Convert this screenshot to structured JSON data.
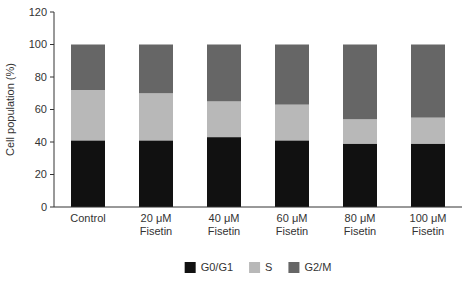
{
  "chart_data": {
    "type": "bar",
    "stacked": true,
    "grid": false,
    "legend": "bottom",
    "y_label": "Cell population (%)",
    "categories": [
      "Control",
      "20 μM\nFisetin",
      "40 μM\nFisetin",
      "60 μM\nFisetin",
      "80 μM\nFisetin",
      "100 μM\nFisetin"
    ],
    "series": [
      {
        "name": "G0/G1",
        "color": "#111111",
        "values": [
          41,
          41,
          43,
          41,
          39,
          39
        ]
      },
      {
        "name": "S",
        "color": "#b8b8b8",
        "values": [
          31,
          29,
          22,
          22,
          15,
          16
        ]
      },
      {
        "name": "G2/M",
        "color": "#666666",
        "values": [
          28,
          30,
          35,
          37,
          46,
          45
        ]
      }
    ],
    "ylim": [
      0,
      120
    ],
    "yticks": [
      0,
      20,
      40,
      60,
      80,
      100,
      120
    ]
  }
}
